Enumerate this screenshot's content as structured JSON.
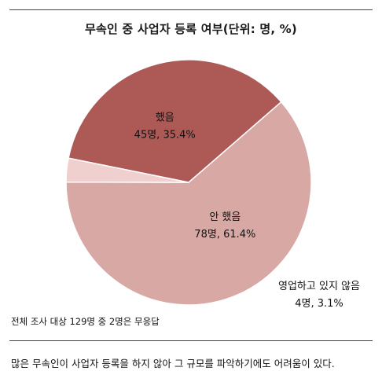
{
  "chart_data": {
    "type": "pie",
    "title": "무속인 중 사업자 등록 여부(단위: 명, %)",
    "slices": [
      {
        "name": "안 했음",
        "value": 78,
        "percent": 61.4,
        "label": "78명, 61.4%",
        "color": "#d8a8a5"
      },
      {
        "name": "영업하고 있지 않음",
        "value": 4,
        "percent": 3.1,
        "label": "4명, 3.1%",
        "color": "#efd0ce"
      },
      {
        "name": "했음",
        "value": 45,
        "percent": 35.4,
        "label": "45명, 35.4%",
        "color": "#ad5a57"
      }
    ]
  },
  "footnote": "전체 조사 대상 129명 중 2명은 무응답",
  "caption": "많은 무속인이 사업자 등록을 하지 않아 그 규모를 파악하기에도 어려움이 있다."
}
